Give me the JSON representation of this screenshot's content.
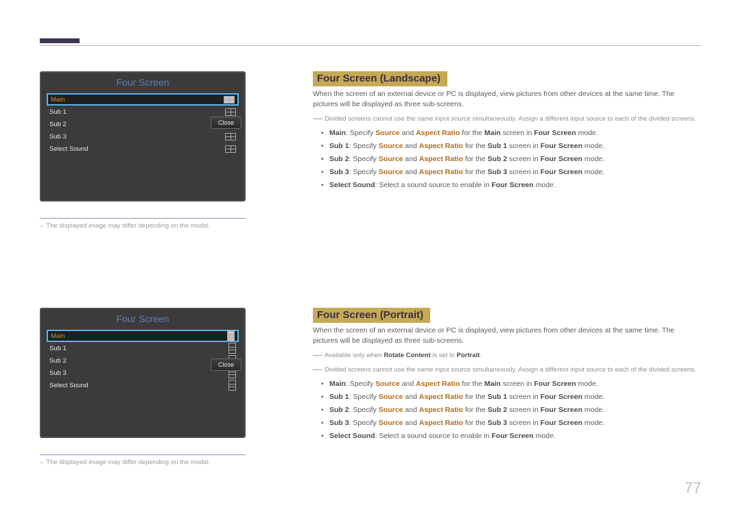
{
  "page_number": "77",
  "accent_bar_color": "#403454",
  "top_rule_color": "#b9b6bb",
  "menus": [
    {
      "title": "Four Screen",
      "orientation": "landscape",
      "rows": [
        "Main",
        "Sub 1",
        "Sub 2",
        "Sub 3",
        "Select Sound"
      ],
      "close": "Close",
      "caption": "The displayed image may differ depending on the model."
    },
    {
      "title": "Four Screen",
      "orientation": "portrait",
      "rows": [
        "Main",
        "Sub 1",
        "Sub 2",
        "Sub 3",
        "Select Sound"
      ],
      "close": "Close",
      "caption": "The displayed image may differ depending on the model."
    }
  ],
  "sections": [
    {
      "title": "Four Screen (Landscape)",
      "intro": "When the screen of an external device or PC is displayed, view pictures from other devices at the same time. The pictures will be displayed as three sub-screens.",
      "notes": [
        "Divided screens cannot use the same input source simultaneously. Assign a different input source to each of the divided screens."
      ],
      "bullets": [
        {
          "head": "Main",
          "body": ": Specify ",
          "k1": "Source",
          "mid": " and ",
          "k2": "Aspect Ratio",
          "tail": " for the ",
          "target": "Main",
          "end": " screen in ",
          "mode": "Four Screen",
          "fin": " mode."
        },
        {
          "head": "Sub 1",
          "body": ": Specify ",
          "k1": "Source",
          "mid": " and ",
          "k2": "Aspect Ratio",
          "tail": " for the ",
          "target": "Sub 1",
          "end": " screen in ",
          "mode": "Four Screen",
          "fin": " mode."
        },
        {
          "head": "Sub 2",
          "body": ": Specify ",
          "k1": "Source",
          "mid": " and ",
          "k2": "Aspect Ratio",
          "tail": " for the ",
          "target": "Sub 2",
          "end": " screen in ",
          "mode": "Four Screen",
          "fin": " mode."
        },
        {
          "head": "Sub 3",
          "body": ": Specify ",
          "k1": "Source",
          "mid": " and ",
          "k2": "Aspect Ratio",
          "tail": " for the ",
          "target": "Sub 3",
          "end": " screen in ",
          "mode": "Four Screen",
          "fin": " mode."
        },
        {
          "head": "Select Sound",
          "plain": ": Select a sound source to enable in ",
          "mode": "Four Screen",
          "fin": " mode."
        }
      ]
    },
    {
      "title": "Four Screen (Portrait)",
      "intro": "When the screen of an external device or PC is displayed, view pictures from other devices at the same time. The pictures will be displayed as three sub-screens.",
      "notes": [
        "Available only when <b>Rotate Content</b> is set to <b>Portrait</b>.",
        "Divided screens cannot use the same input source simultaneously. Assign a different input source to each of the divided screens."
      ],
      "bullets": [
        {
          "head": "Main",
          "body": ": Specify ",
          "k1": "Source",
          "mid": " and ",
          "k2": "Aspect Ratio",
          "tail": " for the ",
          "target": "Main",
          "end": " screen in ",
          "mode": "Four Screen",
          "fin": " mode."
        },
        {
          "head": "Sub 1",
          "body": ": Specify ",
          "k1": "Source",
          "mid": " and ",
          "k2": "Aspect Ratio",
          "tail": " for the ",
          "target": "Sub 1",
          "end": " screen in ",
          "mode": "Four Screen",
          "fin": " mode."
        },
        {
          "head": "Sub 2",
          "body": ": Specify ",
          "k1": "Source",
          "mid": " and ",
          "k2": "Aspect Ratio",
          "tail": " for the ",
          "target": "Sub 2",
          "end": " screen in ",
          "mode": "Four Screen",
          "fin": " mode."
        },
        {
          "head": "Sub 3",
          "body": ": Specify ",
          "k1": "Source",
          "mid": " and ",
          "k2": "Aspect Ratio",
          "tail": " for the ",
          "target": "Sub 3",
          "end": " screen in ",
          "mode": "Four Screen",
          "fin": " mode."
        },
        {
          "head": "Select Sound",
          "plain": ": Select a sound source to enable in ",
          "mode": "Four Screen",
          "fin": " mode."
        }
      ]
    }
  ]
}
